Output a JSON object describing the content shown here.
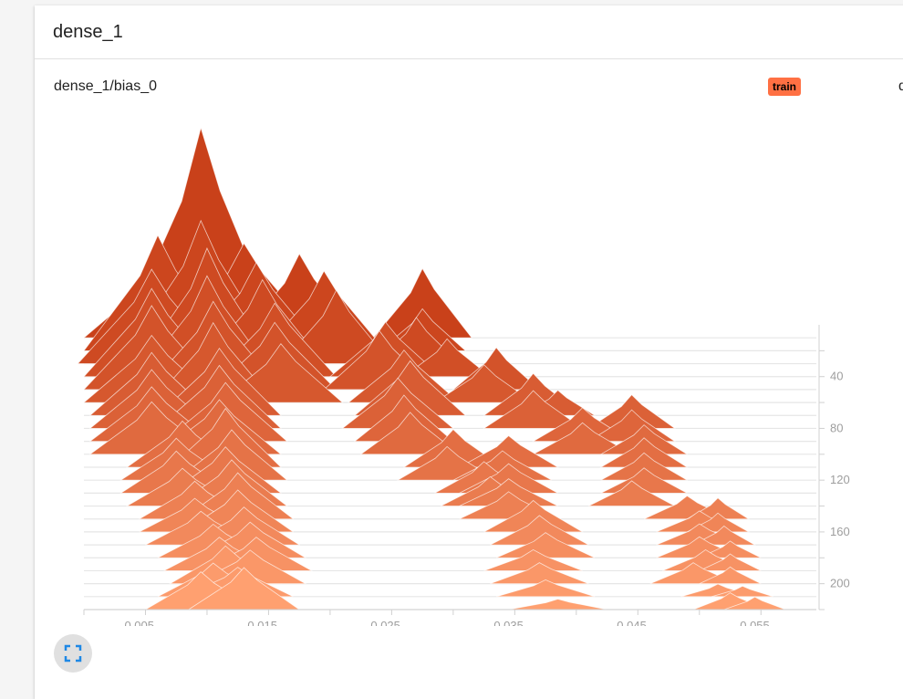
{
  "header": {
    "title": "dense_1"
  },
  "panel": {
    "title": "dense_1/bias_0",
    "run_badge": "train",
    "next_panel_title": "d"
  },
  "colors": {
    "badge": "#ff7043",
    "oldest": "#ffa070",
    "newest": "#c9411a",
    "expand_icon": "#1e88e5"
  },
  "icons": {
    "expand": "fullscreen-icon"
  },
  "chart_data": {
    "type": "histogram",
    "title": "dense_1/bias_0",
    "run": "train",
    "x_ticks": [
      "0.005",
      "0.015",
      "0.025",
      "0.035",
      "0.045",
      "0.055"
    ],
    "x_range": [
      0.0005,
      0.06
    ],
    "step_ticks": [
      "40",
      "80",
      "120",
      "160",
      "200"
    ],
    "step_range": [
      0,
      220
    ],
    "legend": "top-right",
    "series": [
      {
        "step": 10,
        "peaks": [
          [
            0.0065,
            0.012,
            0.35
          ],
          [
            0.01,
            0.013,
            1.0
          ],
          [
            0.0135,
            0.012,
            0.45
          ],
          [
            0.018,
            0.01,
            0.4
          ],
          [
            0.028,
            0.008,
            0.33
          ]
        ]
      },
      {
        "step": 20,
        "peaks": [
          [
            0.0065,
            0.012,
            0.55
          ],
          [
            0.01,
            0.012,
            0.62
          ],
          [
            0.0145,
            0.011,
            0.42
          ],
          [
            0.02,
            0.01,
            0.38
          ],
          [
            0.028,
            0.007,
            0.2
          ]
        ]
      },
      {
        "step": 30,
        "peaks": [
          [
            0.006,
            0.012,
            0.45
          ],
          [
            0.0105,
            0.011,
            0.55
          ],
          [
            0.015,
            0.01,
            0.4
          ],
          [
            0.021,
            0.009,
            0.35
          ],
          [
            0.0275,
            0.007,
            0.22
          ]
        ]
      },
      {
        "step": 40,
        "peaks": [
          [
            0.006,
            0.011,
            0.42
          ],
          [
            0.0105,
            0.011,
            0.48
          ],
          [
            0.016,
            0.01,
            0.35
          ],
          [
            0.025,
            0.009,
            0.26
          ],
          [
            0.03,
            0.007,
            0.18
          ]
        ]
      },
      {
        "step": 50,
        "peaks": [
          [
            0.006,
            0.011,
            0.4
          ],
          [
            0.011,
            0.011,
            0.42
          ],
          [
            0.016,
            0.01,
            0.32
          ],
          [
            0.0245,
            0.009,
            0.28
          ],
          [
            0.034,
            0.007,
            0.2
          ]
        ]
      },
      {
        "step": 60,
        "peaks": [
          [
            0.006,
            0.011,
            0.32
          ],
          [
            0.011,
            0.01,
            0.38
          ],
          [
            0.0165,
            0.01,
            0.28
          ],
          [
            0.0265,
            0.009,
            0.25
          ],
          [
            0.033,
            0.008,
            0.18
          ]
        ]
      },
      {
        "step": 70,
        "peaks": [
          [
            0.006,
            0.01,
            0.3
          ],
          [
            0.0115,
            0.01,
            0.32
          ],
          [
            0.027,
            0.009,
            0.26
          ],
          [
            0.037,
            0.008,
            0.2
          ],
          [
            0.039,
            0.006,
            0.12
          ]
        ]
      },
      {
        "step": 80,
        "peaks": [
          [
            0.006,
            0.01,
            0.28
          ],
          [
            0.0115,
            0.01,
            0.3
          ],
          [
            0.026,
            0.009,
            0.24
          ],
          [
            0.037,
            0.008,
            0.18
          ],
          [
            0.045,
            0.007,
            0.16
          ]
        ]
      },
      {
        "step": 90,
        "peaks": [
          [
            0.006,
            0.01,
            0.26
          ],
          [
            0.012,
            0.01,
            0.28
          ],
          [
            0.0265,
            0.008,
            0.22
          ],
          [
            0.041,
            0.008,
            0.16
          ],
          [
            0.045,
            0.007,
            0.15
          ]
        ]
      },
      {
        "step": 100,
        "peaks": [
          [
            0.006,
            0.01,
            0.25
          ],
          [
            0.0115,
            0.01,
            0.26
          ],
          [
            0.027,
            0.008,
            0.2
          ],
          [
            0.041,
            0.008,
            0.15
          ],
          [
            0.046,
            0.007,
            0.14
          ]
        ]
      },
      {
        "step": 110,
        "peaks": [
          [
            0.0085,
            0.009,
            0.22
          ],
          [
            0.012,
            0.009,
            0.28
          ],
          [
            0.0305,
            0.008,
            0.18
          ],
          [
            0.035,
            0.008,
            0.15
          ],
          [
            0.046,
            0.007,
            0.14
          ]
        ]
      },
      {
        "step": 120,
        "peaks": [
          [
            0.008,
            0.009,
            0.2
          ],
          [
            0.0125,
            0.009,
            0.24
          ],
          [
            0.03,
            0.008,
            0.16
          ],
          [
            0.0345,
            0.008,
            0.14
          ],
          [
            0.046,
            0.007,
            0.13
          ]
        ]
      },
      {
        "step": 130,
        "peaks": [
          [
            0.008,
            0.009,
            0.2
          ],
          [
            0.012,
            0.009,
            0.22
          ],
          [
            0.033,
            0.008,
            0.15
          ],
          [
            0.035,
            0.008,
            0.14
          ],
          [
            0.046,
            0.007,
            0.12
          ]
        ]
      },
      {
        "step": 140,
        "peaks": [
          [
            0.0085,
            0.009,
            0.18
          ],
          [
            0.0125,
            0.009,
            0.22
          ],
          [
            0.0335,
            0.008,
            0.14
          ],
          [
            0.035,
            0.008,
            0.13
          ],
          [
            0.045,
            0.007,
            0.12
          ]
        ]
      },
      {
        "step": 150,
        "peaks": [
          [
            0.0095,
            0.009,
            0.18
          ],
          [
            0.013,
            0.009,
            0.22
          ],
          [
            0.035,
            0.008,
            0.13
          ],
          [
            0.0495,
            0.007,
            0.11
          ],
          [
            0.052,
            0.005,
            0.1
          ]
        ]
      },
      {
        "step": 160,
        "peaks": [
          [
            0.0095,
            0.009,
            0.16
          ],
          [
            0.013,
            0.009,
            0.2
          ],
          [
            0.037,
            0.008,
            0.15
          ],
          [
            0.0505,
            0.007,
            0.1
          ],
          [
            0.052,
            0.005,
            0.09
          ]
        ]
      },
      {
        "step": 170,
        "peaks": [
          [
            0.01,
            0.009,
            0.16
          ],
          [
            0.0135,
            0.009,
            0.18
          ],
          [
            0.0375,
            0.008,
            0.14
          ],
          [
            0.0505,
            0.007,
            0.1
          ],
          [
            0.0525,
            0.005,
            0.09
          ]
        ]
      },
      {
        "step": 180,
        "peaks": [
          [
            0.011,
            0.009,
            0.16
          ],
          [
            0.014,
            0.009,
            0.17
          ],
          [
            0.038,
            0.008,
            0.12
          ],
          [
            0.0505,
            0.007,
            0.1
          ],
          [
            0.053,
            0.005,
            0.08
          ]
        ]
      },
      {
        "step": 190,
        "peaks": [
          [
            0.0115,
            0.009,
            0.16
          ],
          [
            0.0145,
            0.009,
            0.16
          ],
          [
            0.037,
            0.008,
            0.1
          ],
          [
            0.051,
            0.007,
            0.1
          ],
          [
            0.053,
            0.005,
            0.08
          ]
        ]
      },
      {
        "step": 200,
        "peaks": [
          [
            0.012,
            0.009,
            0.18
          ],
          [
            0.014,
            0.009,
            0.16
          ],
          [
            0.0375,
            0.008,
            0.1
          ],
          [
            0.05,
            0.007,
            0.1
          ],
          [
            0.053,
            0.005,
            0.08
          ]
        ]
      },
      {
        "step": 210,
        "peaks": [
          [
            0.011,
            0.009,
            0.16
          ],
          [
            0.013,
            0.009,
            0.14
          ],
          [
            0.038,
            0.008,
            0.08
          ],
          [
            0.052,
            0.006,
            0.06
          ],
          [
            0.054,
            0.005,
            0.05
          ]
        ]
      },
      {
        "step": 220,
        "peaks": [
          [
            0.01,
            0.009,
            0.18
          ],
          [
            0.0135,
            0.009,
            0.2
          ],
          [
            0.039,
            0.008,
            0.05
          ],
          [
            0.053,
            0.006,
            0.08
          ],
          [
            0.055,
            0.005,
            0.06
          ]
        ]
      }
    ]
  }
}
